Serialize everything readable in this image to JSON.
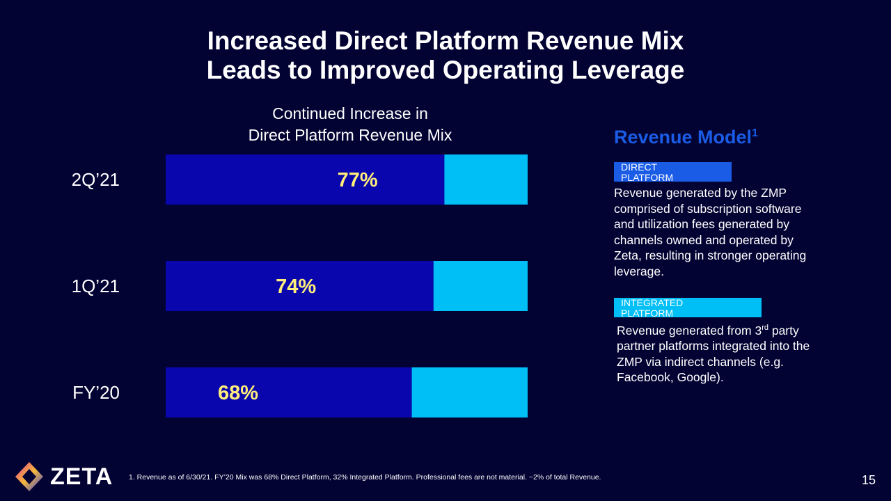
{
  "slide": {
    "title_line1": "Increased Direct Platform Revenue Mix",
    "title_line2": "Leads to Improved Operating Leverage",
    "page_number": "15",
    "logo_text": "ZETA",
    "footnote": "1. Revenue as of 6/30/21. FY’20 Mix was 68% Direct Platform, 32% Integrated Platform.  Professional fees are not material. ~2% of total Revenue."
  },
  "revenue_model": {
    "title": "Revenue Model",
    "title_sup": "1",
    "direct": {
      "label_line1": "DIRECT",
      "label_line2": "PLATFORM",
      "description": "Revenue generated by the ZMP comprised of subscription software and utilization fees generated by channels owned and operated by Zeta, resulting in stronger operating leverage.",
      "color": "#1a5ce6"
    },
    "integrated": {
      "label_line1": "INTEGRATED",
      "label_line2": "PLATFORM",
      "description_pre": "Revenue generated from 3",
      "description_sup": "rd",
      "description_post": " party partner platforms integrated into the ZMP via indirect channels (e.g. Facebook, Google).",
      "color": "#00bff7"
    }
  },
  "chart_data": {
    "type": "bar",
    "orientation": "horizontal",
    "stacked": true,
    "title_line1": "Continued Increase in",
    "title_line2": "Direct Platform Revenue Mix",
    "categories": [
      "2Q’21",
      "1Q’21",
      "FY’20"
    ],
    "series": [
      {
        "name": "Direct Platform",
        "values": [
          77,
          74,
          68
        ],
        "color": "#0a06ad"
      },
      {
        "name": "Integrated Platform",
        "values": [
          23,
          26,
          32
        ],
        "color": "#00bff7"
      }
    ],
    "data_labels": [
      "77%",
      "74%",
      "68%"
    ],
    "label_color": "#ffef7a",
    "xlim": [
      0,
      100
    ],
    "grid": false,
    "legend": "right (Revenue Model panel)"
  }
}
